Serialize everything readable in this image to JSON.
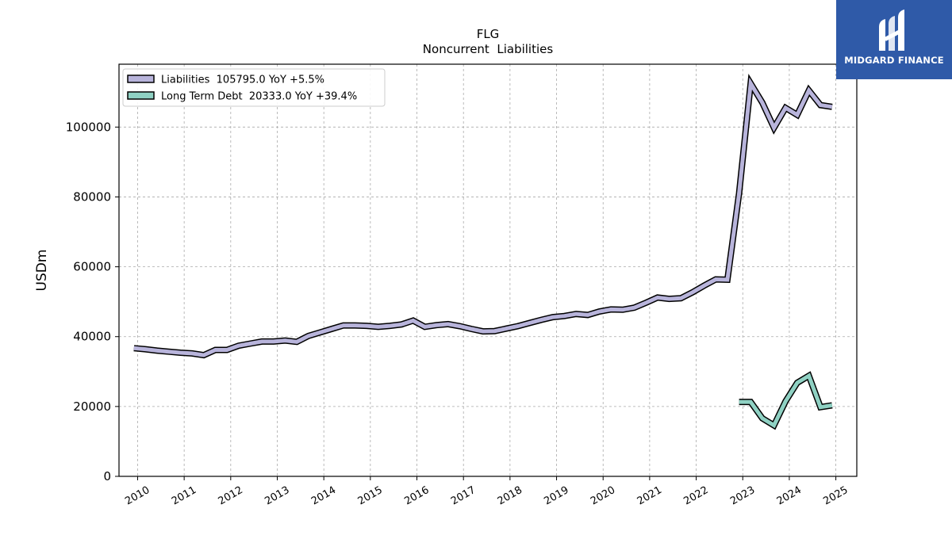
{
  "brand": {
    "name": "MIDGARD FINANCE",
    "background": "#2f5aa8"
  },
  "chart_data": {
    "type": "line",
    "title": "FLG",
    "subtitle": "Noncurrent  Liabilities",
    "ylabel": "USDm",
    "xlabel": "",
    "xlim": [
      2009.6,
      2025.45
    ],
    "ylim": [
      0,
      118000
    ],
    "xticks": [
      "2010",
      "2011",
      "2012",
      "2013",
      "2014",
      "2015",
      "2016",
      "2017",
      "2018",
      "2019",
      "2020",
      "2021",
      "2022",
      "2023",
      "2024",
      "2025"
    ],
    "yticks": [
      "0",
      "20000",
      "40000",
      "60000",
      "80000",
      "100000"
    ],
    "grid": true,
    "legend_position": "top-left",
    "series": [
      {
        "name": "Liabilities  105795.0 YoY +5.5%",
        "color": "#b8b4db",
        "x": [
          2009.92,
          2010.17,
          2010.42,
          2010.67,
          2010.92,
          2011.17,
          2011.42,
          2011.67,
          2011.92,
          2012.17,
          2012.42,
          2012.67,
          2012.92,
          2013.17,
          2013.42,
          2013.67,
          2013.92,
          2014.17,
          2014.42,
          2014.67,
          2014.92,
          2015.17,
          2015.42,
          2015.67,
          2015.92,
          2016.17,
          2016.42,
          2016.67,
          2016.92,
          2017.17,
          2017.42,
          2017.67,
          2017.92,
          2018.17,
          2018.42,
          2018.67,
          2018.92,
          2019.17,
          2019.42,
          2019.67,
          2019.92,
          2020.17,
          2020.42,
          2020.67,
          2020.92,
          2021.17,
          2021.42,
          2021.67,
          2021.92,
          2022.17,
          2022.42,
          2022.67,
          2022.92,
          2023.17,
          2023.42,
          2023.67,
          2023.92,
          2024.17,
          2024.42,
          2024.67,
          2024.92
        ],
        "y": [
          36700,
          36400,
          36000,
          35700,
          35400,
          35200,
          34700,
          36200,
          36200,
          37400,
          38000,
          38600,
          38600,
          38900,
          38500,
          40200,
          41200,
          42200,
          43200,
          43200,
          43100,
          42800,
          43100,
          43500,
          44600,
          42800,
          43300,
          43600,
          43000,
          42200,
          41500,
          41600,
          42300,
          43000,
          43900,
          44800,
          45600,
          45900,
          46500,
          46200,
          47200,
          47800,
          47700,
          48300,
          49700,
          51200,
          50800,
          51000,
          52700,
          54600,
          56400,
          56300,
          81000,
          112500,
          107000,
          99800,
          105500,
          103500,
          110500,
          106300,
          105800
        ]
      },
      {
        "name": "Long Term Debt  20333.0 YoY +39.4%",
        "color": "#8fd1c3",
        "x": [
          2022.92,
          2023.17,
          2023.42,
          2023.67,
          2023.92,
          2024.17,
          2024.42,
          2024.67,
          2024.92
        ],
        "y": [
          21300,
          21300,
          16600,
          14600,
          21500,
          26800,
          28800,
          19800,
          20333
        ]
      }
    ]
  }
}
